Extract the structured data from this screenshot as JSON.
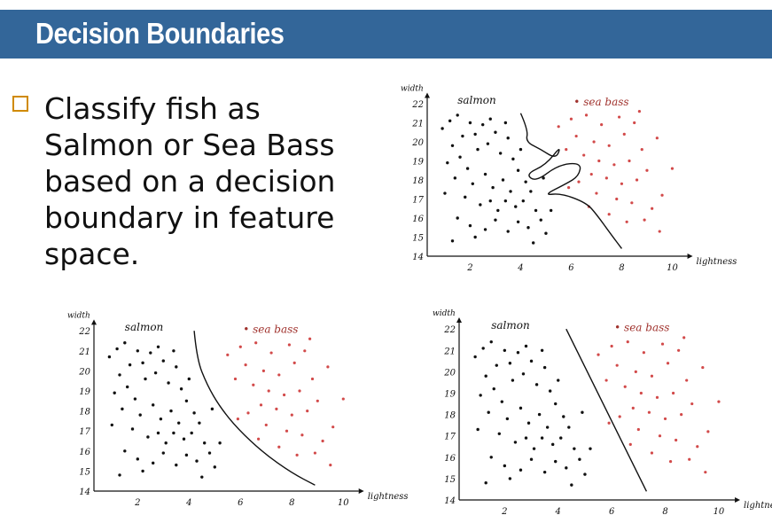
{
  "slide": {
    "title": "Decision Boundaries",
    "bullet": "Classify fish as Salmon or Sea Bass based on a decision boundary in feature space."
  },
  "colors": {
    "title_bar": "#336699",
    "title_text": "#ffffff",
    "bullet_box": "#d08a00",
    "salmon_points": "#111111",
    "seabass_points": "#d24a4a"
  },
  "chart_data": [
    {
      "type": "scatter",
      "title": "",
      "xlabel": "lightness",
      "ylabel": "width",
      "xlim": [
        0,
        11
      ],
      "ylim": [
        14,
        22
      ],
      "xticks": [
        "2",
        "4",
        "6",
        "8",
        "10"
      ],
      "yticks": [
        "14",
        "15",
        "16",
        "17",
        "18",
        "19",
        "20",
        "21",
        "22"
      ],
      "class_labels": [
        "salmon",
        "sea bass"
      ],
      "boundary": "complex",
      "boundary_points": [
        [
          4.0,
          21.5
        ],
        [
          4.3,
          20.6
        ],
        [
          4.2,
          20.0
        ],
        [
          4.8,
          19.6
        ],
        [
          5.4,
          19.1
        ],
        [
          5.6,
          19.8
        ],
        [
          5.0,
          18.8
        ],
        [
          4.2,
          18.3
        ],
        [
          4.6,
          17.9
        ],
        [
          5.5,
          18.8
        ],
        [
          6.4,
          18.9
        ],
        [
          6.3,
          18.2
        ],
        [
          5.8,
          17.8
        ],
        [
          4.9,
          17.2
        ],
        [
          5.6,
          17.3
        ],
        [
          6.6,
          16.8
        ],
        [
          7.0,
          16.2
        ],
        [
          7.6,
          15.1
        ],
        [
          8.0,
          14.4
        ]
      ]
    },
    {
      "type": "scatter",
      "title": "",
      "xlabel": "lightness",
      "ylabel": "width",
      "xlim": [
        0,
        11
      ],
      "ylim": [
        14,
        22
      ],
      "xticks": [
        "2",
        "4",
        "6",
        "8",
        "10"
      ],
      "yticks": [
        "14",
        "15",
        "16",
        "17",
        "18",
        "19",
        "20",
        "21",
        "22"
      ],
      "class_labels": [
        "salmon",
        "sea bass"
      ],
      "boundary": "curve",
      "boundary_points": [
        [
          4.2,
          22.0
        ],
        [
          4.3,
          20.6
        ],
        [
          4.7,
          19.3
        ],
        [
          5.2,
          18.2
        ],
        [
          5.9,
          17.1
        ],
        [
          6.9,
          15.9
        ],
        [
          8.0,
          14.9
        ],
        [
          8.9,
          14.3
        ]
      ]
    },
    {
      "type": "scatter",
      "title": "",
      "xlabel": "lightness",
      "ylabel": "width",
      "xlim": [
        0,
        11
      ],
      "ylim": [
        14,
        22
      ],
      "xticks": [
        "2",
        "4",
        "6",
        "8",
        "10"
      ],
      "yticks": [
        "14",
        "15",
        "16",
        "17",
        "18",
        "19",
        "20",
        "21",
        "22"
      ],
      "class_labels": [
        "salmon",
        "sea bass"
      ],
      "boundary": "linear",
      "boundary_points": [
        [
          4.3,
          22.0
        ],
        [
          7.3,
          14.4
        ]
      ]
    }
  ],
  "salmon_points": [
    [
      0.9,
      20.7
    ],
    [
      1.2,
      21.1
    ],
    [
      1.5,
      21.4
    ],
    [
      1.7,
      20.3
    ],
    [
      1.3,
      19.8
    ],
    [
      2.0,
      21.0
    ],
    [
      2.2,
      20.4
    ],
    [
      2.5,
      20.9
    ],
    [
      2.8,
      21.2
    ],
    [
      3.0,
      20.5
    ],
    [
      1.1,
      18.9
    ],
    [
      1.6,
      19.2
    ],
    [
      1.9,
      18.6
    ],
    [
      2.3,
      19.6
    ],
    [
      2.7,
      19.9
    ],
    [
      3.2,
      19.4
    ],
    [
      3.5,
      20.2
    ],
    [
      3.7,
      19.1
    ],
    [
      1.4,
      18.1
    ],
    [
      2.1,
      17.8
    ],
    [
      2.6,
      18.3
    ],
    [
      2.9,
      17.6
    ],
    [
      3.3,
      18.0
    ],
    [
      3.6,
      17.4
    ],
    [
      3.9,
      18.5
    ],
    [
      4.2,
      17.9
    ],
    [
      1.8,
      17.1
    ],
    [
      2.4,
      16.7
    ],
    [
      2.8,
      16.9
    ],
    [
      3.1,
      16.4
    ],
    [
      3.4,
      16.9
    ],
    [
      3.8,
      16.6
    ],
    [
      4.1,
      16.9
    ],
    [
      4.4,
      17.4
    ],
    [
      4.6,
      16.4
    ],
    [
      1.5,
      16.0
    ],
    [
      2.0,
      15.6
    ],
    [
      2.6,
      15.4
    ],
    [
      3.0,
      15.9
    ],
    [
      3.5,
      15.3
    ],
    [
      3.9,
      15.8
    ],
    [
      4.3,
      15.5
    ],
    [
      4.8,
      15.9
    ],
    [
      5.0,
      15.2
    ],
    [
      1.3,
      14.8
    ],
    [
      2.2,
      15.0
    ],
    [
      4.5,
      14.7
    ],
    [
      5.2,
      16.4
    ],
    [
      4.9,
      18.1
    ],
    [
      4.0,
      19.6
    ],
    [
      3.4,
      21.0
    ],
    [
      1.0,
      17.3
    ]
  ],
  "seabass_points": [
    [
      5.5,
      20.8
    ],
    [
      6.0,
      21.2
    ],
    [
      6.6,
      21.4
    ],
    [
      7.2,
      20.9
    ],
    [
      7.9,
      21.3
    ],
    [
      8.5,
      21.0
    ],
    [
      9.4,
      20.2
    ],
    [
      6.2,
      20.3
    ],
    [
      6.9,
      20.0
    ],
    [
      7.5,
      19.8
    ],
    [
      8.1,
      20.4
    ],
    [
      8.8,
      19.6
    ],
    [
      5.8,
      19.6
    ],
    [
      6.5,
      19.3
    ],
    [
      7.1,
      19.0
    ],
    [
      7.7,
      18.8
    ],
    [
      8.3,
      19.0
    ],
    [
      9.0,
      18.5
    ],
    [
      6.8,
      18.3
    ],
    [
      7.4,
      18.1
    ],
    [
      8.0,
      17.8
    ],
    [
      8.6,
      18.0
    ],
    [
      9.6,
      17.2
    ],
    [
      7.0,
      17.3
    ],
    [
      7.8,
      17.0
    ],
    [
      8.4,
      16.8
    ],
    [
      9.2,
      16.5
    ],
    [
      7.5,
      16.2
    ],
    [
      8.2,
      15.8
    ],
    [
      8.9,
      15.9
    ],
    [
      9.5,
      15.3
    ],
    [
      6.7,
      16.6
    ],
    [
      5.9,
      17.6
    ],
    [
      6.3,
      17.9
    ],
    [
      10.0,
      18.6
    ],
    [
      8.7,
      21.6
    ]
  ]
}
